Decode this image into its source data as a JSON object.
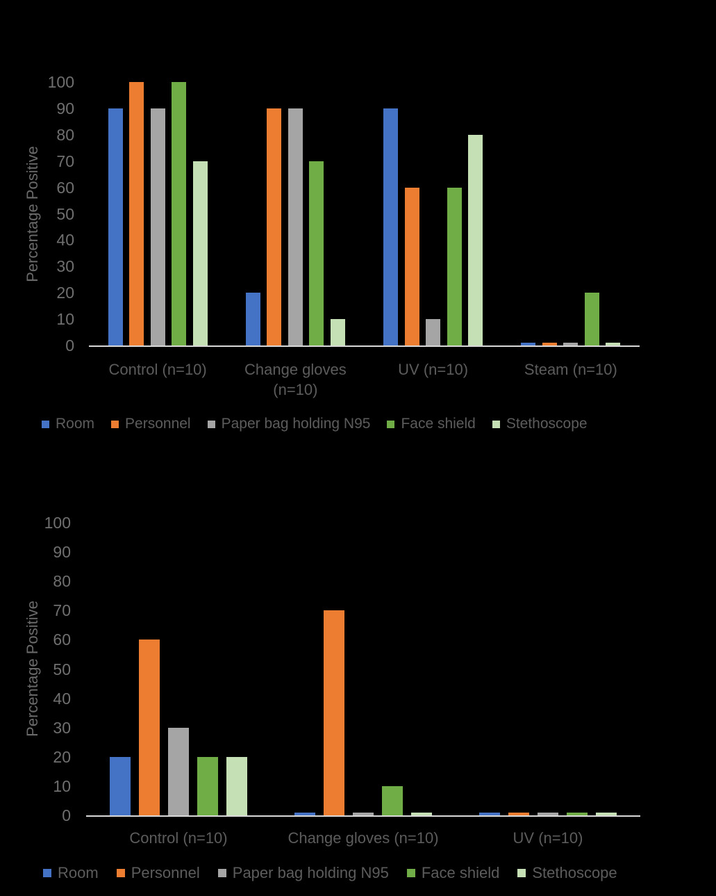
{
  "page": {
    "background": "#000000"
  },
  "chart_data": [
    {
      "name": "decontamination-cycle-1",
      "type": "bar",
      "ylabel": "Percentage Positive",
      "xlabel": "",
      "ylim": [
        0,
        100
      ],
      "yticks": [
        0,
        10,
        20,
        30,
        40,
        50,
        60,
        70,
        80,
        90,
        100
      ],
      "grid": false,
      "legend_position": "bottom",
      "axis_color": "#D9D9D9",
      "text_color": "#5c5c5c",
      "categories": [
        "Control (n=10)",
        "Change gloves (n=10)",
        "UV (n=10)",
        "Steam (n=10)"
      ],
      "series": [
        {
          "name": "Room",
          "color": "#4472C4",
          "values": [
            90,
            20,
            90,
            1
          ]
        },
        {
          "name": "Personnel",
          "color": "#ED7D31",
          "values": [
            100,
            90,
            60,
            1
          ]
        },
        {
          "name": "Paper bag holding N95",
          "color": "#A5A5A5",
          "values": [
            90,
            90,
            10,
            1
          ]
        },
        {
          "name": "Face shield",
          "color": "#70AD47",
          "values": [
            100,
            70,
            60,
            20
          ]
        },
        {
          "name": "Stethoscope",
          "color": "#C5E0B4",
          "values": [
            70,
            10,
            80,
            1
          ]
        }
      ]
    },
    {
      "name": "decontamination-cycle-2",
      "type": "bar",
      "ylabel": "Percentage Positive",
      "xlabel": "",
      "ylim": [
        0,
        100
      ],
      "yticks": [
        0,
        10,
        20,
        30,
        40,
        50,
        60,
        70,
        80,
        90,
        100
      ],
      "grid": false,
      "legend_position": "bottom",
      "axis_color": "#D9D9D9",
      "text_color": "#5c5c5c",
      "categories": [
        "Control (n=10)",
        "Change gloves (n=10)",
        "UV (n=10)"
      ],
      "series": [
        {
          "name": "Room",
          "color": "#4472C4",
          "values": [
            20,
            1,
            1
          ]
        },
        {
          "name": "Personnel",
          "color": "#ED7D31",
          "values": [
            60,
            70,
            1
          ]
        },
        {
          "name": "Paper bag holding N95",
          "color": "#A5A5A5",
          "values": [
            30,
            1,
            1
          ]
        },
        {
          "name": "Face shield",
          "color": "#70AD47",
          "values": [
            20,
            10,
            1
          ]
        },
        {
          "name": "Stethoscope",
          "color": "#C5E0B4",
          "values": [
            20,
            1,
            1
          ]
        }
      ]
    }
  ]
}
